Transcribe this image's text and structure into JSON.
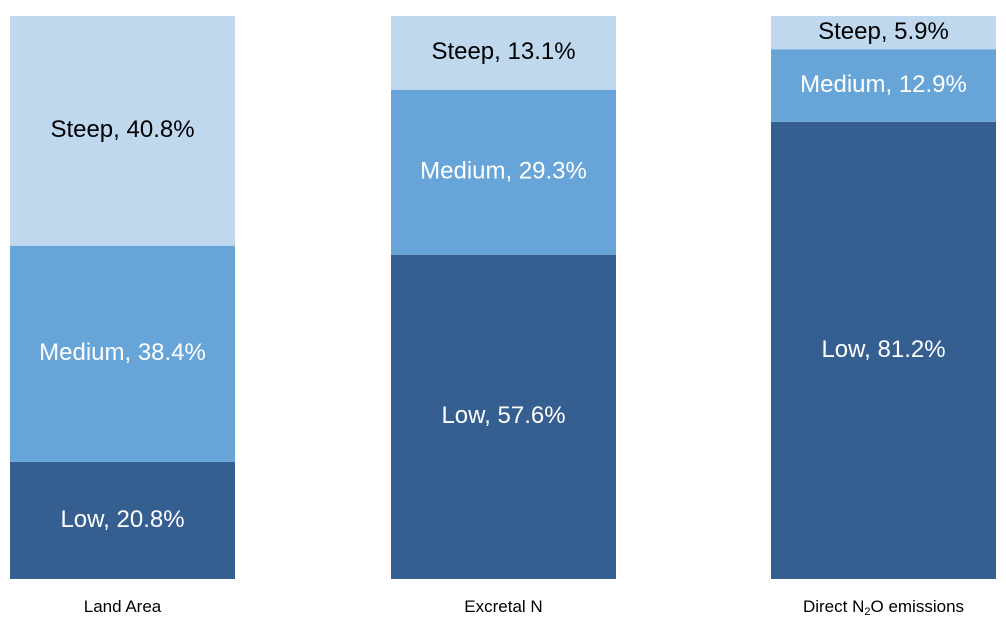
{
  "chart_data": {
    "type": "bar",
    "stacked": true,
    "normalized_percent": true,
    "categories": [
      {
        "label": "Land Area",
        "label_parts": [
          "Land Area"
        ]
      },
      {
        "label": "Excretal N",
        "label_parts": [
          "Excretal N"
        ]
      },
      {
        "label": "Direct N₂O emissions",
        "label_parts": [
          "Direct N",
          "2",
          "O emissions"
        ]
      }
    ],
    "series": [
      {
        "name": "Low",
        "values": [
          20.8,
          57.6,
          81.2
        ],
        "labels": [
          "Low, 20.8%",
          "Low, 57.6%",
          "Low, 81.2%"
        ],
        "color": "#355f91"
      },
      {
        "name": "Medium",
        "values": [
          38.4,
          29.3,
          12.9
        ],
        "labels": [
          "Medium, 38.4%",
          "Medium, 29.3%",
          "Medium, 12.9%"
        ],
        "color": "#67a5d8"
      },
      {
        "name": "Steep",
        "values": [
          40.8,
          13.1,
          5.9
        ],
        "labels": [
          "Steep, 40.8%",
          "Steep, 13.1%",
          "Steep, 5.9%"
        ],
        "color": "#bfd8ee"
      }
    ],
    "ylim": [
      0,
      100
    ],
    "grid": false,
    "legend": "none"
  }
}
